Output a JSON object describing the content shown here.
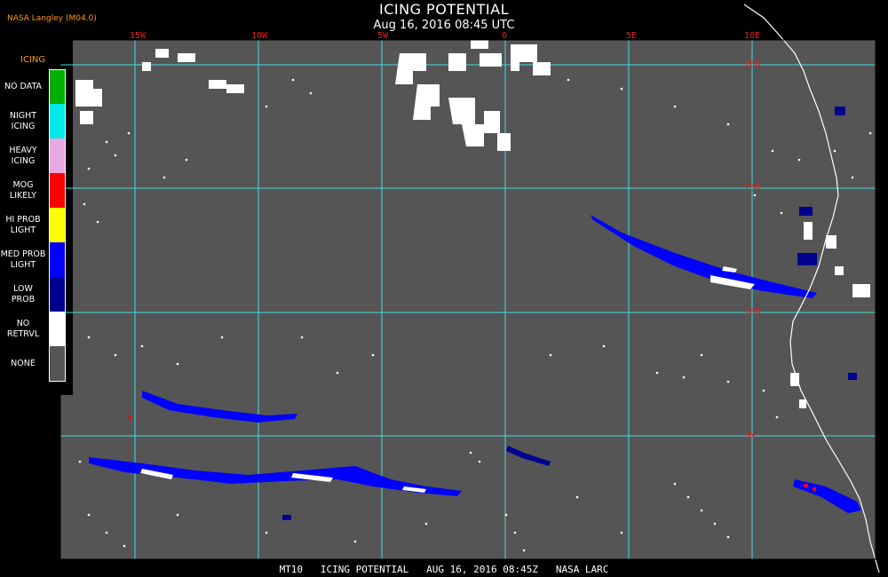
{
  "header": {
    "title": "ICING POTENTIAL",
    "subtitle": "Aug 16, 2016 08:45 UTC",
    "credit": "NASA Langley (M04.0)"
  },
  "grid": {
    "lon_labels": [
      "15W",
      "10W",
      "5W",
      "0",
      "5E",
      "10E"
    ],
    "lat_labels": [
      "20N",
      "15N",
      "10N",
      "5N"
    ]
  },
  "legend": {
    "title": "ICING",
    "items": [
      {
        "label": "NO DATA",
        "color": "#00b000"
      },
      {
        "label": "NIGHT\nICING",
        "color": "#00e8e8"
      },
      {
        "label": "HEAVY\nICING",
        "color": "#e8a8e0"
      },
      {
        "label": "MOG\nLIKELY",
        "color": "#ff0000"
      },
      {
        "label": "HI PROB\nLIGHT",
        "color": "#ffff00"
      },
      {
        "label": "MED PROB\nLIGHT",
        "color": "#0000ff"
      },
      {
        "label": "LOW\nPROB",
        "color": "#000090"
      },
      {
        "label": "NO\nRETRVL",
        "color": "#ffffff"
      },
      {
        "label": "NONE",
        "color": "#555555"
      }
    ]
  },
  "footer": {
    "text": "MT10   ICING POTENTIAL   AUG 16, 2016 08:45Z   NASA LARC"
  },
  "colors": {
    "background": "#555555",
    "grid": "#40e0e0",
    "coastline": "#ffffff",
    "label": "#e02020"
  }
}
